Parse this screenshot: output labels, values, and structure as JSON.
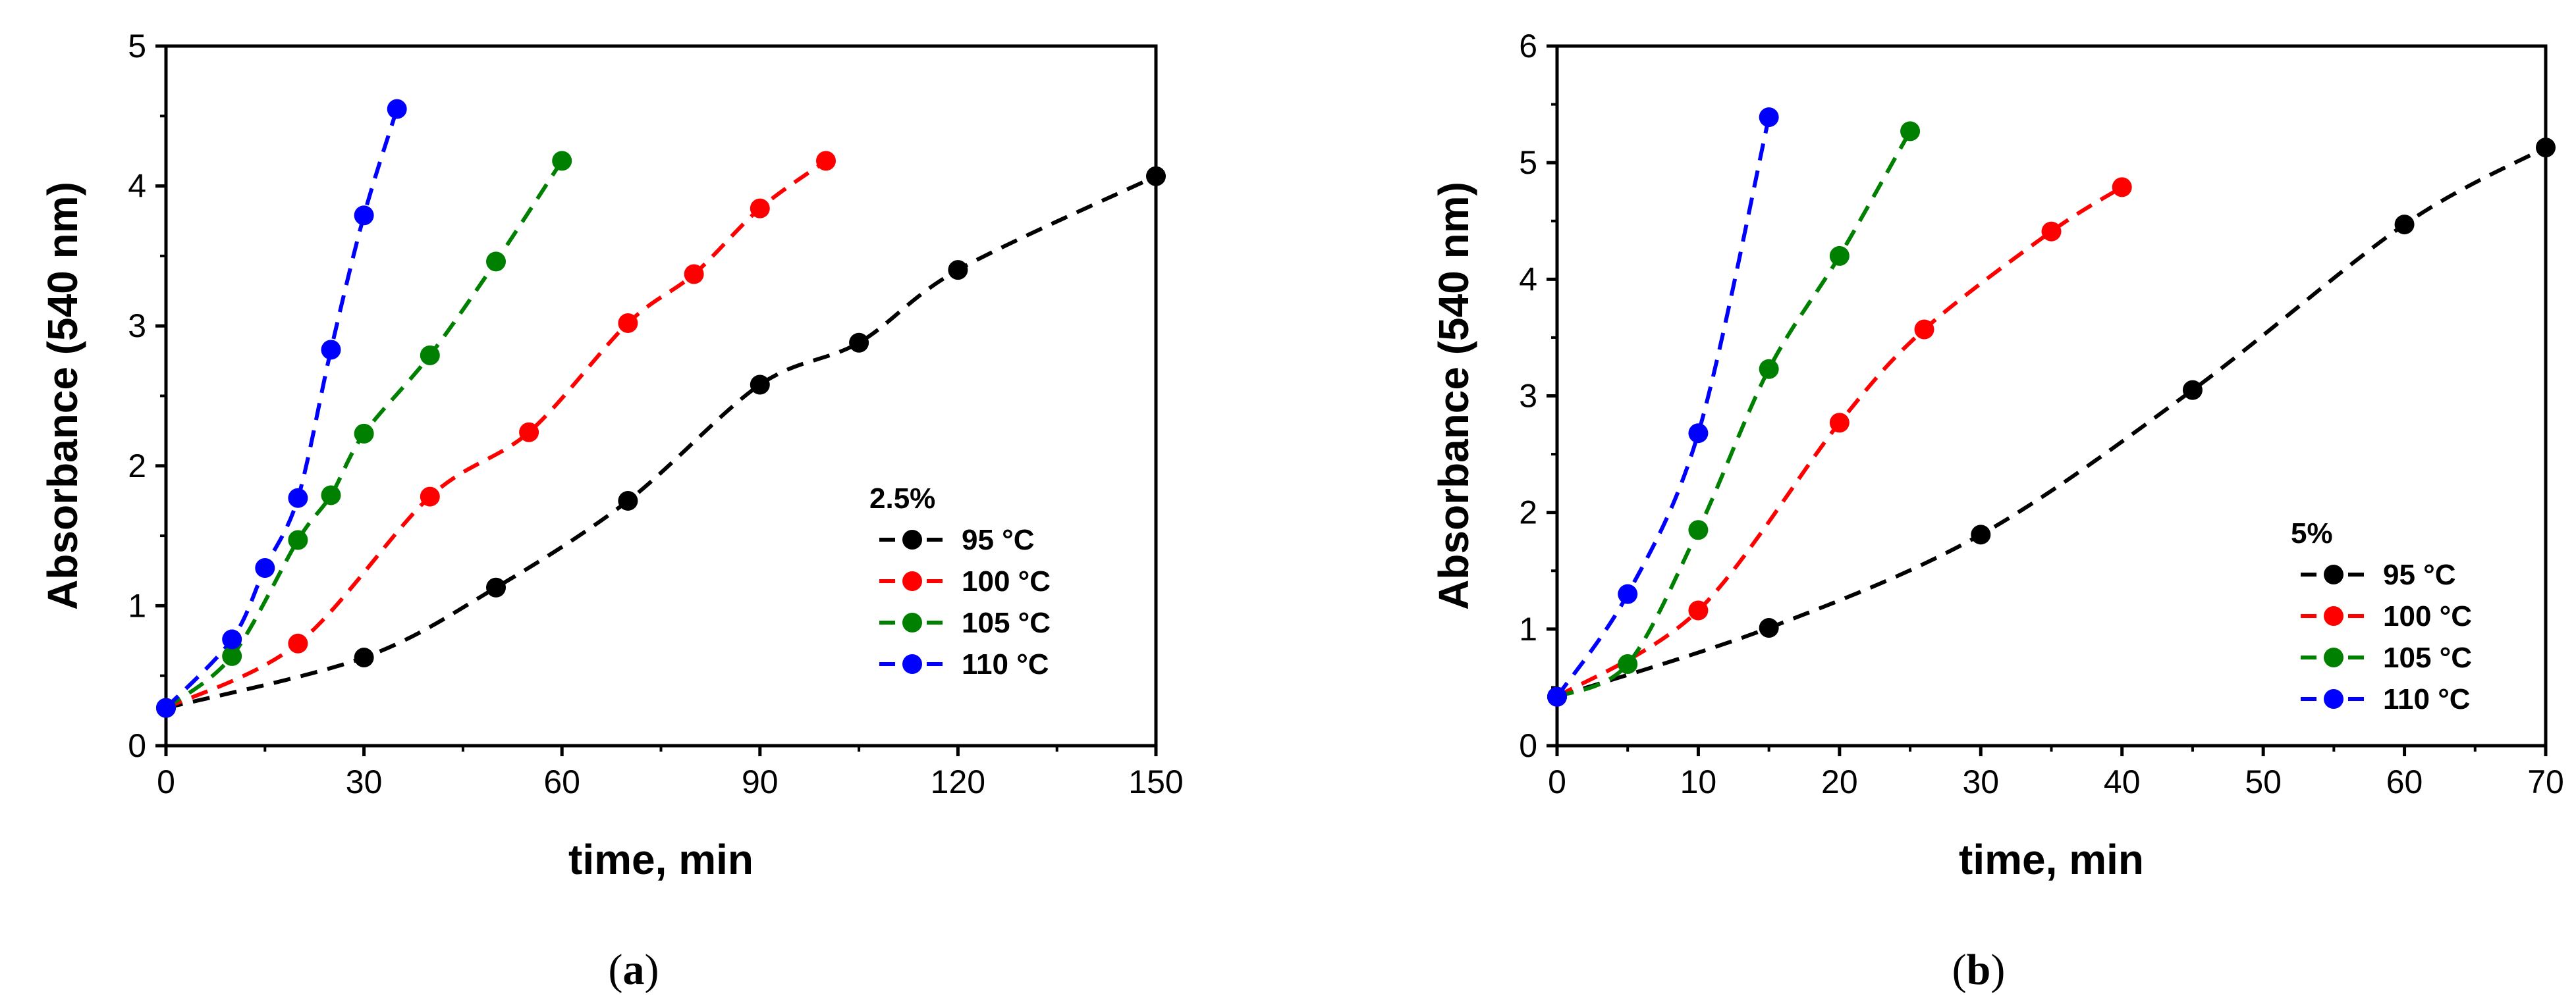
{
  "chart_data": [
    {
      "type": "line",
      "caption_open": "(",
      "caption_letter": "a",
      "caption_close": ")",
      "xlabel": "time, min",
      "ylabel": "Absorbance (540 nm)",
      "xlim": [
        0,
        150
      ],
      "ylim": [
        0,
        5
      ],
      "xticks": [
        0,
        30,
        60,
        90,
        120,
        150
      ],
      "yticks": [
        0,
        1,
        2,
        3,
        4,
        5
      ],
      "legend_title": "2.5%",
      "legend_position": "center-right",
      "series": [
        {
          "name": "95 °C",
          "color": "#000000",
          "x": [
            0,
            30,
            50,
            70,
            90,
            105,
            120,
            150
          ],
          "y": [
            0.27,
            0.63,
            1.13,
            1.75,
            2.58,
            2.88,
            3.4,
            4.07
          ]
        },
        {
          "name": "100 °C",
          "color": "#ff0000",
          "x": [
            0,
            20,
            40,
            55,
            70,
            80,
            90,
            100
          ],
          "y": [
            0.27,
            0.73,
            1.78,
            2.24,
            3.02,
            3.37,
            3.84,
            4.18
          ]
        },
        {
          "name": "105 °C",
          "color": "#008000",
          "x": [
            0,
            10,
            20,
            25,
            30,
            40,
            50,
            60
          ],
          "y": [
            0.27,
            0.64,
            1.47,
            1.79,
            2.23,
            2.79,
            3.46,
            4.18
          ]
        },
        {
          "name": "110 °C",
          "color": "#0000ff",
          "x": [
            0,
            10,
            15,
            20,
            25,
            30,
            35
          ],
          "y": [
            0.27,
            0.76,
            1.27,
            1.77,
            2.83,
            3.79,
            4.55
          ]
        }
      ]
    },
    {
      "type": "line",
      "caption_open": "(",
      "caption_letter": "b",
      "caption_close": ")",
      "xlabel": "time, min",
      "ylabel": "Absorbance (540 nm)",
      "xlim": [
        0,
        70
      ],
      "ylim": [
        0,
        6
      ],
      "xticks": [
        0,
        10,
        20,
        30,
        40,
        50,
        60,
        70
      ],
      "yticks": [
        0,
        1,
        2,
        3,
        4,
        5,
        6
      ],
      "legend_title": "5%",
      "legend_position": "bottom-right",
      "series": [
        {
          "name": "95 °C",
          "color": "#000000",
          "x": [
            0,
            15,
            30,
            45,
            60,
            70
          ],
          "y": [
            0.42,
            1.01,
            1.81,
            3.05,
            4.47,
            5.13
          ]
        },
        {
          "name": "100 °C",
          "color": "#ff0000",
          "x": [
            0,
            10,
            20,
            26,
            35,
            40
          ],
          "y": [
            0.42,
            1.16,
            2.77,
            3.57,
            4.41,
            4.79
          ]
        },
        {
          "name": "105 °C",
          "color": "#008000",
          "x": [
            0,
            5,
            10,
            15,
            20,
            25
          ],
          "y": [
            0.42,
            0.7,
            1.85,
            3.23,
            4.2,
            5.27
          ]
        },
        {
          "name": "110 °C",
          "color": "#0000ff",
          "x": [
            0,
            5,
            10,
            15
          ],
          "y": [
            0.42,
            1.3,
            2.68,
            5.39
          ]
        }
      ]
    }
  ]
}
